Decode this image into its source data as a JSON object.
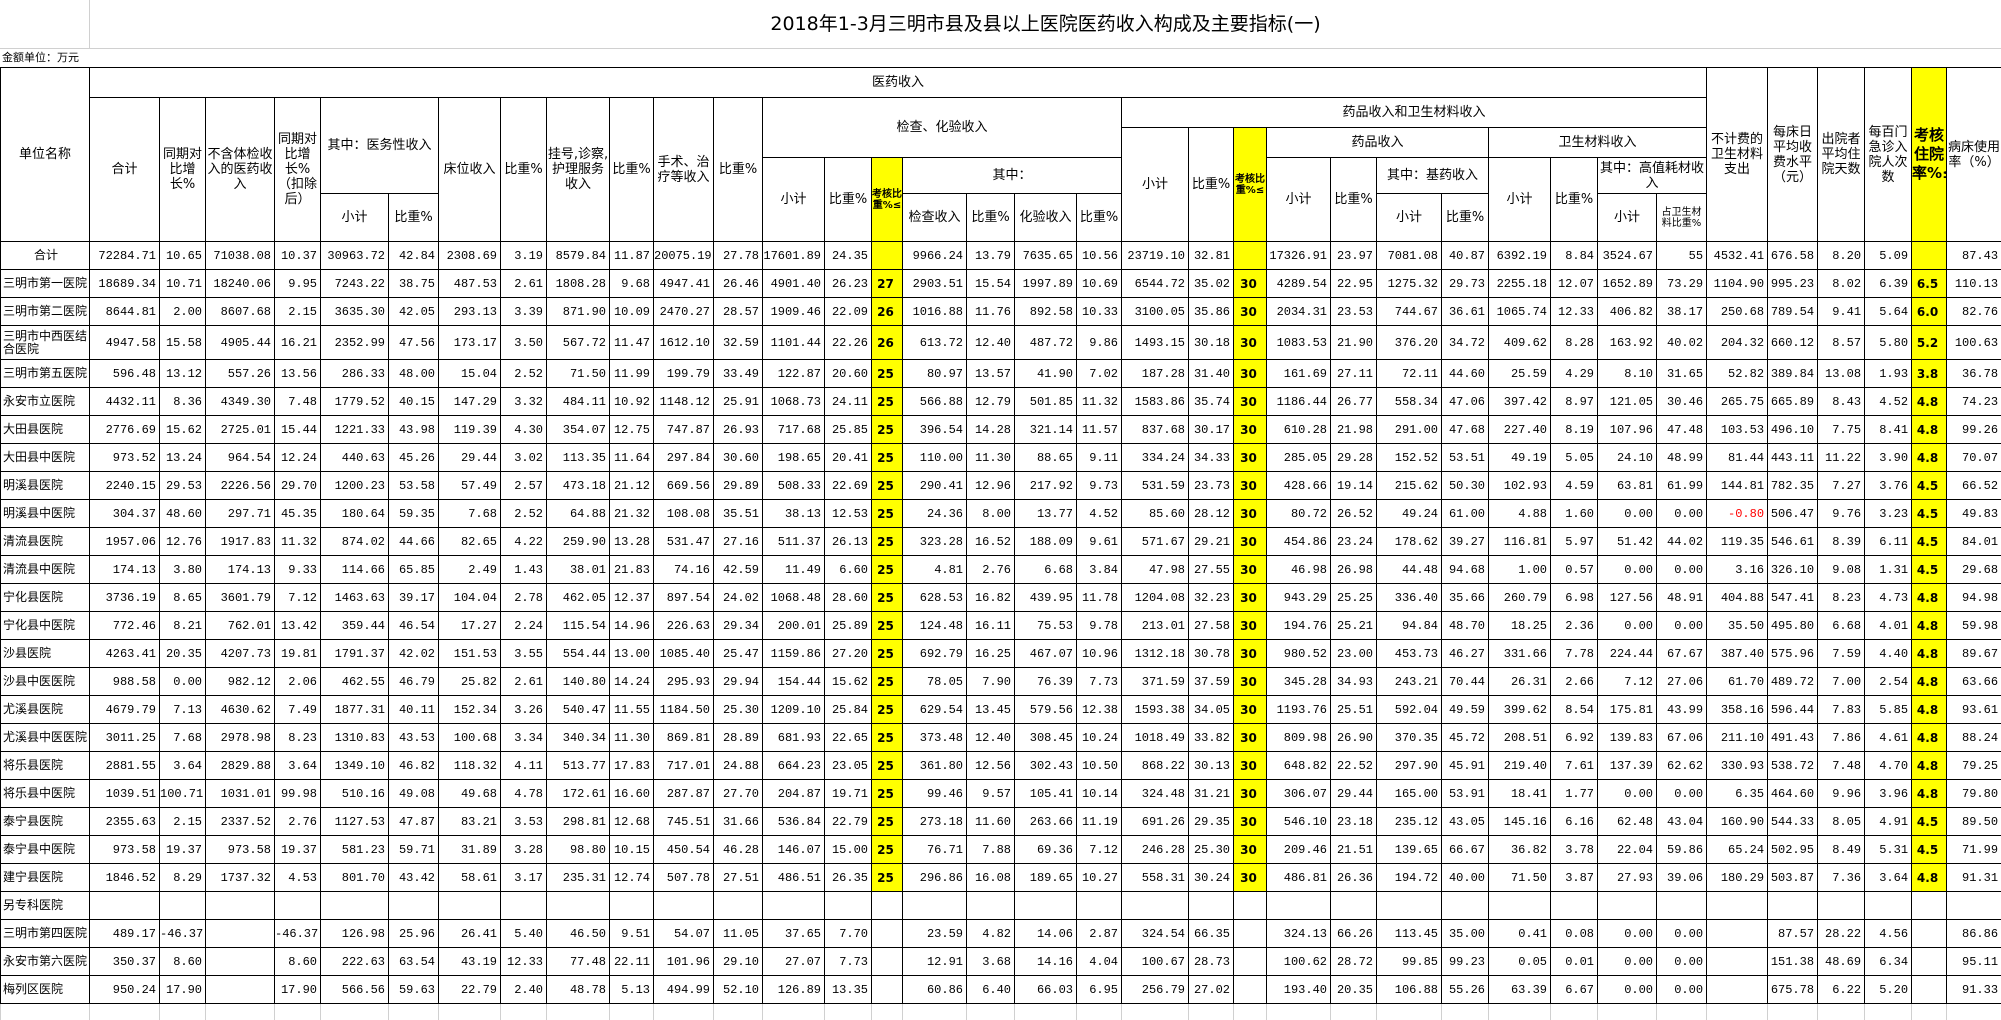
{
  "title": "2018年1-3月三明市县及县以上医院医药收入构成及主要指标(一)",
  "unit_label": "金额单位：万元",
  "colors": {
    "highlight": "#ffff00",
    "negative": "#ff0000"
  },
  "header": {
    "unit_name": "单位名称",
    "medical_income": "医药收入",
    "total": "合计",
    "yoy": "同期对比增长%",
    "excl_checkup": "不含体检收入的医药收入",
    "yoy_excl": "同期对比增长%（扣除后）",
    "medical_service": "其中：医务性收入",
    "subtotal": "小计",
    "ratio_pct": "比重%",
    "bed_income": "床位收入",
    "ratio": "比重%",
    "registration": "挂号,诊察,护理服务收入",
    "surgery": "手术、治疗等收入",
    "exam_lab": "检查、化验收入",
    "assess_ratio": "考核比重%≤",
    "of_which": "其中：",
    "exam_income": "检查收入",
    "lab_income": "化验收入",
    "drug_material": "药品收入和卫生材料收入",
    "drug_income": "药品收入",
    "essential_drug": "其中：基药收入",
    "material_income": "卫生材料收入",
    "high_value": "其中：高值耗材收入",
    "share_of_material": "占卫生材料比重%",
    "nonbillable_material": "不计费的卫生材料支出",
    "bed_day_fee": "每床日平均收费水平（元）",
    "avg_stay": "出院者平均住院天数",
    "admissions_per_100": "每百门急诊入院人次数",
    "assess_admission": "考核住院率%≤",
    "bed_usage": "病床使用率（%）"
  },
  "rows": [
    [
      "合计",
      "72284.71",
      "10.65",
      "71038.08",
      "10.37",
      "30963.72",
      "42.84",
      "2308.69",
      "3.19",
      "8579.84",
      "11.87",
      "20075.19",
      "27.78",
      "17601.89",
      "24.35",
      "",
      "9966.24",
      "13.79",
      "7635.65",
      "10.56",
      "23719.10",
      "32.81",
      "",
      "17326.91",
      "23.97",
      "7081.08",
      "40.87",
      "6392.19",
      "8.84",
      "3524.67",
      "55",
      "4532.41",
      "676.58",
      "8.20",
      "5.09",
      "",
      "87.43"
    ],
    [
      "三明市第一医院",
      "18689.34",
      "10.71",
      "18240.06",
      "9.95",
      "7243.22",
      "38.75",
      "487.53",
      "2.61",
      "1808.28",
      "9.68",
      "4947.41",
      "26.46",
      "4901.40",
      "26.23",
      "27",
      "2903.51",
      "15.54",
      "1997.89",
      "10.69",
      "6544.72",
      "35.02",
      "30",
      "4289.54",
      "22.95",
      "1275.32",
      "29.73",
      "2255.18",
      "12.07",
      "1652.89",
      "73.29",
      "1104.90",
      "995.23",
      "8.02",
      "6.39",
      "6.5",
      "110.13"
    ],
    [
      "三明市第二医院",
      "8644.81",
      "2.00",
      "8607.68",
      "2.15",
      "3635.30",
      "42.05",
      "293.13",
      "3.39",
      "871.90",
      "10.09",
      "2470.27",
      "28.57",
      "1909.46",
      "22.09",
      "26",
      "1016.88",
      "11.76",
      "892.58",
      "10.33",
      "3100.05",
      "35.86",
      "30",
      "2034.31",
      "23.53",
      "744.67",
      "36.61",
      "1065.74",
      "12.33",
      "406.82",
      "38.17",
      "250.68",
      "789.54",
      "9.41",
      "5.64",
      "6.0",
      "82.76"
    ],
    [
      "三明市中西医结合医院",
      "4947.58",
      "15.58",
      "4905.44",
      "16.21",
      "2352.99",
      "47.56",
      "173.17",
      "3.50",
      "567.72",
      "11.47",
      "1612.10",
      "32.59",
      "1101.44",
      "22.26",
      "26",
      "613.72",
      "12.40",
      "487.72",
      "9.86",
      "1493.15",
      "30.18",
      "30",
      "1083.53",
      "21.90",
      "376.20",
      "34.72",
      "409.62",
      "8.28",
      "163.92",
      "40.02",
      "204.32",
      "660.12",
      "8.57",
      "5.80",
      "5.2",
      "100.63"
    ],
    [
      "三明市第五医院",
      "596.48",
      "13.12",
      "557.26",
      "13.56",
      "286.33",
      "48.00",
      "15.04",
      "2.52",
      "71.50",
      "11.99",
      "199.79",
      "33.49",
      "122.87",
      "20.60",
      "25",
      "80.97",
      "13.57",
      "41.90",
      "7.02",
      "187.28",
      "31.40",
      "30",
      "161.69",
      "27.11",
      "72.11",
      "44.60",
      "25.59",
      "4.29",
      "8.10",
      "31.65",
      "52.82",
      "389.84",
      "13.08",
      "1.93",
      "3.8",
      "36.78"
    ],
    [
      "永安市立医院",
      "4432.11",
      "8.36",
      "4349.30",
      "7.48",
      "1779.52",
      "40.15",
      "147.29",
      "3.32",
      "484.11",
      "10.92",
      "1148.12",
      "25.91",
      "1068.73",
      "24.11",
      "25",
      "566.88",
      "12.79",
      "501.85",
      "11.32",
      "1583.86",
      "35.74",
      "30",
      "1186.44",
      "26.77",
      "558.34",
      "47.06",
      "397.42",
      "8.97",
      "121.05",
      "30.46",
      "265.75",
      "665.89",
      "8.43",
      "4.52",
      "4.8",
      "74.23"
    ],
    [
      "大田县医院",
      "2776.69",
      "15.62",
      "2725.01",
      "15.44",
      "1221.33",
      "43.98",
      "119.39",
      "4.30",
      "354.07",
      "12.75",
      "747.87",
      "26.93",
      "717.68",
      "25.85",
      "25",
      "396.54",
      "14.28",
      "321.14",
      "11.57",
      "837.68",
      "30.17",
      "30",
      "610.28",
      "21.98",
      "291.00",
      "47.68",
      "227.40",
      "8.19",
      "107.96",
      "47.48",
      "103.53",
      "496.10",
      "7.75",
      "8.41",
      "4.8",
      "99.26"
    ],
    [
      "大田县中医院",
      "973.52",
      "13.24",
      "964.54",
      "12.24",
      "440.63",
      "45.26",
      "29.44",
      "3.02",
      "113.35",
      "11.64",
      "297.84",
      "30.60",
      "198.65",
      "20.41",
      "25",
      "110.00",
      "11.30",
      "88.65",
      "9.11",
      "334.24",
      "34.33",
      "30",
      "285.05",
      "29.28",
      "152.52",
      "53.51",
      "49.19",
      "5.05",
      "24.10",
      "48.99",
      "81.44",
      "443.11",
      "11.22",
      "3.90",
      "4.8",
      "70.07"
    ],
    [
      "明溪县医院",
      "2240.15",
      "29.53",
      "2226.56",
      "29.70",
      "1200.23",
      "53.58",
      "57.49",
      "2.57",
      "473.18",
      "21.12",
      "669.56",
      "29.89",
      "508.33",
      "22.69",
      "25",
      "290.41",
      "12.96",
      "217.92",
      "9.73",
      "531.59",
      "23.73",
      "30",
      "428.66",
      "19.14",
      "215.62",
      "50.30",
      "102.93",
      "4.59",
      "63.81",
      "61.99",
      "144.81",
      "782.35",
      "7.27",
      "3.76",
      "4.5",
      "66.52"
    ],
    [
      "明溪县中医院",
      "304.37",
      "48.60",
      "297.71",
      "45.35",
      "180.64",
      "59.35",
      "7.68",
      "2.52",
      "64.88",
      "21.32",
      "108.08",
      "35.51",
      "38.13",
      "12.53",
      "25",
      "24.36",
      "8.00",
      "13.77",
      "4.52",
      "85.60",
      "28.12",
      "30",
      "80.72",
      "26.52",
      "49.24",
      "61.00",
      "4.88",
      "1.60",
      "0.00",
      "0.00",
      "-0.80",
      "506.47",
      "9.76",
      "3.23",
      "4.5",
      "49.83"
    ],
    [
      "清流县医院",
      "1957.06",
      "12.76",
      "1917.83",
      "11.32",
      "874.02",
      "44.66",
      "82.65",
      "4.22",
      "259.90",
      "13.28",
      "531.47",
      "27.16",
      "511.37",
      "26.13",
      "25",
      "323.28",
      "16.52",
      "188.09",
      "9.61",
      "571.67",
      "29.21",
      "30",
      "454.86",
      "23.24",
      "178.62",
      "39.27",
      "116.81",
      "5.97",
      "51.42",
      "44.02",
      "119.35",
      "546.61",
      "8.39",
      "6.11",
      "4.5",
      "84.01"
    ],
    [
      "清流县中医院",
      "174.13",
      "3.80",
      "174.13",
      "9.33",
      "114.66",
      "65.85",
      "2.49",
      "1.43",
      "38.01",
      "21.83",
      "74.16",
      "42.59",
      "11.49",
      "6.60",
      "25",
      "4.81",
      "2.76",
      "6.68",
      "3.84",
      "47.98",
      "27.55",
      "30",
      "46.98",
      "26.98",
      "44.48",
      "94.68",
      "1.00",
      "0.57",
      "0.00",
      "0.00",
      "3.16",
      "326.10",
      "9.08",
      "1.31",
      "4.5",
      "29.68"
    ],
    [
      "宁化县医院",
      "3736.19",
      "8.65",
      "3601.79",
      "7.12",
      "1463.63",
      "39.17",
      "104.04",
      "2.78",
      "462.05",
      "12.37",
      "897.54",
      "24.02",
      "1068.48",
      "28.60",
      "25",
      "628.53",
      "16.82",
      "439.95",
      "11.78",
      "1204.08",
      "32.23",
      "30",
      "943.29",
      "25.25",
      "336.40",
      "35.66",
      "260.79",
      "6.98",
      "127.56",
      "48.91",
      "404.88",
      "547.41",
      "8.23",
      "4.73",
      "4.8",
      "94.98"
    ],
    [
      "宁化县中医院",
      "772.46",
      "8.21",
      "762.01",
      "13.42",
      "359.44",
      "46.54",
      "17.27",
      "2.24",
      "115.54",
      "14.96",
      "226.63",
      "29.34",
      "200.01",
      "25.89",
      "25",
      "124.48",
      "16.11",
      "75.53",
      "9.78",
      "213.01",
      "27.58",
      "30",
      "194.76",
      "25.21",
      "94.84",
      "48.70",
      "18.25",
      "2.36",
      "0.00",
      "0.00",
      "35.50",
      "495.80",
      "6.68",
      "4.01",
      "4.8",
      "59.98"
    ],
    [
      "沙县医院",
      "4263.41",
      "20.35",
      "4207.73",
      "19.81",
      "1791.37",
      "42.02",
      "151.53",
      "3.55",
      "554.44",
      "13.00",
      "1085.40",
      "25.47",
      "1159.86",
      "27.20",
      "25",
      "692.79",
      "16.25",
      "467.07",
      "10.96",
      "1312.18",
      "30.78",
      "30",
      "980.52",
      "23.00",
      "453.73",
      "46.27",
      "331.66",
      "7.78",
      "224.44",
      "67.67",
      "387.40",
      "575.96",
      "7.59",
      "4.40",
      "4.8",
      "89.67"
    ],
    [
      "沙县中医医院",
      "988.58",
      "0.00",
      "982.12",
      "2.06",
      "462.55",
      "46.79",
      "25.82",
      "2.61",
      "140.80",
      "14.24",
      "295.93",
      "29.94",
      "154.44",
      "15.62",
      "25",
      "78.05",
      "7.90",
      "76.39",
      "7.73",
      "371.59",
      "37.59",
      "30",
      "345.28",
      "34.93",
      "243.21",
      "70.44",
      "26.31",
      "2.66",
      "7.12",
      "27.06",
      "61.70",
      "489.72",
      "7.00",
      "2.54",
      "4.8",
      "63.66"
    ],
    [
      "尤溪县医院",
      "4679.79",
      "7.13",
      "4630.62",
      "7.49",
      "1877.31",
      "40.11",
      "152.34",
      "3.26",
      "540.47",
      "11.55",
      "1184.50",
      "25.30",
      "1209.10",
      "25.84",
      "25",
      "629.54",
      "13.45",
      "579.56",
      "12.38",
      "1593.38",
      "34.05",
      "30",
      "1193.76",
      "25.51",
      "592.04",
      "49.59",
      "399.62",
      "8.54",
      "175.81",
      "43.99",
      "358.16",
      "596.44",
      "7.83",
      "5.85",
      "4.8",
      "93.61"
    ],
    [
      "尤溪县中医医院",
      "3011.25",
      "7.68",
      "2978.98",
      "8.23",
      "1310.83",
      "43.53",
      "100.68",
      "3.34",
      "340.34",
      "11.30",
      "869.81",
      "28.89",
      "681.93",
      "22.65",
      "25",
      "373.48",
      "12.40",
      "308.45",
      "10.24",
      "1018.49",
      "33.82",
      "30",
      "809.98",
      "26.90",
      "370.35",
      "45.72",
      "208.51",
      "6.92",
      "139.83",
      "67.06",
      "211.10",
      "491.43",
      "7.86",
      "4.61",
      "4.8",
      "88.24"
    ],
    [
      "将乐县医院",
      "2881.55",
      "3.64",
      "2829.88",
      "3.64",
      "1349.10",
      "46.82",
      "118.32",
      "4.11",
      "513.77",
      "17.83",
      "717.01",
      "24.88",
      "664.23",
      "23.05",
      "25",
      "361.80",
      "12.56",
      "302.43",
      "10.50",
      "868.22",
      "30.13",
      "30",
      "648.82",
      "22.52",
      "297.90",
      "45.91",
      "219.40",
      "7.61",
      "137.39",
      "62.62",
      "330.93",
      "538.72",
      "7.48",
      "4.70",
      "4.8",
      "79.25"
    ],
    [
      "将乐县中医院",
      "1039.51",
      "100.71",
      "1031.01",
      "99.98",
      "510.16",
      "49.08",
      "49.68",
      "4.78",
      "172.61",
      "16.60",
      "287.87",
      "27.70",
      "204.87",
      "19.71",
      "25",
      "99.46",
      "9.57",
      "105.41",
      "10.14",
      "324.48",
      "31.21",
      "30",
      "306.07",
      "29.44",
      "165.00",
      "53.91",
      "18.41",
      "1.77",
      "0.00",
      "0.00",
      "6.35",
      "464.60",
      "9.96",
      "3.96",
      "4.8",
      "79.80"
    ],
    [
      "泰宁县医院",
      "2355.63",
      "2.15",
      "2337.52",
      "2.76",
      "1127.53",
      "47.87",
      "83.21",
      "3.53",
      "298.81",
      "12.68",
      "745.51",
      "31.66",
      "536.84",
      "22.79",
      "25",
      "273.18",
      "11.60",
      "263.66",
      "11.19",
      "691.26",
      "29.35",
      "30",
      "546.10",
      "23.18",
      "235.12",
      "43.05",
      "145.16",
      "6.16",
      "62.48",
      "43.04",
      "160.90",
      "544.33",
      "8.05",
      "4.91",
      "4.5",
      "89.50"
    ],
    [
      "泰宁县中医院",
      "973.58",
      "19.37",
      "973.58",
      "19.37",
      "581.23",
      "59.71",
      "31.89",
      "3.28",
      "98.80",
      "10.15",
      "450.54",
      "46.28",
      "146.07",
      "15.00",
      "25",
      "76.71",
      "7.88",
      "69.36",
      "7.12",
      "246.28",
      "25.30",
      "30",
      "209.46",
      "21.51",
      "139.65",
      "66.67",
      "36.82",
      "3.78",
      "22.04",
      "59.86",
      "65.24",
      "502.95",
      "8.49",
      "5.31",
      "4.5",
      "71.99"
    ],
    [
      "建宁县医院",
      "1846.52",
      "8.29",
      "1737.32",
      "4.53",
      "801.70",
      "43.42",
      "58.61",
      "3.17",
      "235.31",
      "12.74",
      "507.78",
      "27.51",
      "486.51",
      "26.35",
      "25",
      "296.86",
      "16.08",
      "189.65",
      "10.27",
      "558.31",
      "30.24",
      "30",
      "486.81",
      "26.36",
      "194.72",
      "40.00",
      "71.50",
      "3.87",
      "27.93",
      "39.06",
      "180.29",
      "503.87",
      "7.36",
      "3.64",
      "4.8",
      "91.31"
    ],
    [
      "另专科医院",
      "",
      "",
      "",
      "",
      "",
      "",
      "",
      "",
      "",
      "",
      "",
      "",
      "",
      "",
      "",
      "",
      "",
      "",
      "",
      "",
      "",
      "",
      "",
      "",
      "",
      "",
      "",
      "",
      "",
      "",
      "",
      "",
      "",
      "",
      "",
      ""
    ],
    [
      "三明市第四医院",
      "489.17",
      "-46.37",
      "",
      "-46.37",
      "126.98",
      "25.96",
      "26.41",
      "5.40",
      "46.50",
      "9.51",
      "54.07",
      "11.05",
      "37.65",
      "7.70",
      "",
      "23.59",
      "4.82",
      "14.06",
      "2.87",
      "324.54",
      "66.35",
      "",
      "324.13",
      "66.26",
      "113.45",
      "35.00",
      "0.41",
      "0.08",
      "0.00",
      "0.00",
      "",
      "87.57",
      "28.22",
      "4.56",
      "",
      "86.86"
    ],
    [
      "永安市第六医院",
      "350.37",
      "8.60",
      "",
      "8.60",
      "222.63",
      "63.54",
      "43.19",
      "12.33",
      "77.48",
      "22.11",
      "101.96",
      "29.10",
      "27.07",
      "7.73",
      "",
      "12.91",
      "3.68",
      "14.16",
      "4.04",
      "100.67",
      "28.73",
      "",
      "100.62",
      "28.72",
      "99.85",
      "99.23",
      "0.05",
      "0.01",
      "0.00",
      "0.00",
      "",
      "151.38",
      "48.69",
      "6.34",
      "",
      "95.11"
    ],
    [
      "梅列区医院",
      "950.24",
      "17.90",
      "",
      "17.90",
      "566.56",
      "59.63",
      "22.79",
      "2.40",
      "48.78",
      "5.13",
      "494.99",
      "52.10",
      "126.89",
      "13.35",
      "",
      "60.86",
      "6.40",
      "66.03",
      "6.95",
      "256.79",
      "27.02",
      "",
      "193.40",
      "20.35",
      "106.88",
      "55.26",
      "63.39",
      "6.67",
      "0.00",
      "0.00",
      "",
      "675.78",
      "6.22",
      "5.20",
      "",
      "91.33"
    ]
  ]
}
